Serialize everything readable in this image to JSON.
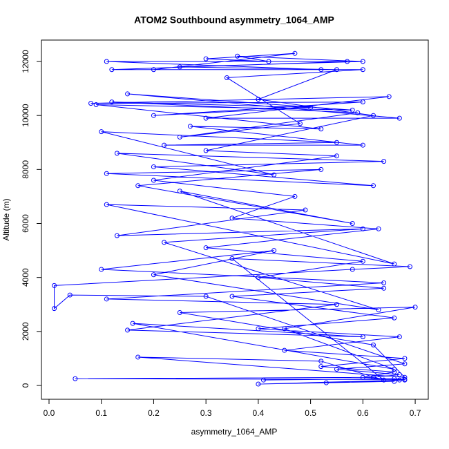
{
  "chart_data": {
    "type": "line",
    "markers": true,
    "title": "ATOM2 Southbound asymmetry_1064_AMP",
    "xlabel": "asymmetry_1064_AMP",
    "ylabel": "Altitude (m)",
    "color": "#0000ff",
    "x": [
      0.41,
      0.66,
      0.68,
      0.05,
      0.62,
      0.67,
      0.55,
      0.68,
      0.3,
      0.04,
      0.01,
      0.01,
      0.58,
      0.69,
      0.35,
      0.64,
      0.52,
      0.17,
      0.68,
      0.62,
      0.25,
      0.7,
      0.45,
      0.66,
      0.16,
      0.6,
      0.15,
      0.55,
      0.11,
      0.64,
      0.1,
      0.43,
      0.2,
      0.63,
      0.22,
      0.6,
      0.13,
      0.49,
      0.11,
      0.66,
      0.25,
      0.58,
      0.17,
      0.52,
      0.11,
      0.62,
      0.2,
      0.64,
      0.13,
      0.43,
      0.1,
      0.55,
      0.22,
      0.6,
      0.27,
      0.52,
      0.09,
      0.58,
      0.15,
      0.67,
      0.3,
      0.65,
      0.08,
      0.6,
      0.2,
      0.5,
      0.12,
      0.59,
      0.25,
      0.48,
      0.34,
      0.6,
      0.12,
      0.57,
      0.11,
      0.52,
      0.2,
      0.47,
      0.3,
      0.42,
      0.36,
      0.6,
      0.25,
      0.55,
      0.4,
      0.62,
      0.3,
      0.55,
      0.2,
      0.47,
      0.35,
      0.63,
      0.3,
      0.6,
      0.4,
      0.64,
      0.35,
      0.66,
      0.4,
      0.67,
      0.45,
      0.68,
      0.52,
      0.66,
      0.6,
      0.67,
      0.53,
      0.68,
      0.4,
      0.66
    ],
    "values": [
      200,
      250,
      220,
      250,
      300,
      400,
      600,
      800,
      3300,
      3350,
      2850,
      3700,
      4300,
      4400,
      4700,
      200,
      900,
      1050,
      300,
      1500,
      2700,
      2900,
      2100,
      600,
      2300,
      1800,
      2050,
      3000,
      3200,
      3800,
      4300,
      5000,
      4100,
      2800,
      5300,
      5800,
      5550,
      6500,
      6700,
      4500,
      7200,
      6000,
      7400,
      8000,
      7850,
      7400,
      8100,
      8300,
      8600,
      7800,
      9400,
      9000,
      8900,
      8900,
      9600,
      9500,
      10400,
      10200,
      10800,
      9900,
      9900,
      10700,
      10450,
      10500,
      10000,
      10300,
      10500,
      10100,
      9200,
      9700,
      11400,
      11700,
      11700,
      12000,
      12000,
      11700,
      11700,
      12300,
      12100,
      12000,
      12200,
      12000,
      11800,
      11700,
      10600,
      10000,
      8700,
      8500,
      7600,
      7000,
      6200,
      5800,
      5100,
      4600,
      4000,
      3600,
      3300,
      2500,
      2100,
      1800,
      1300,
      1000,
      700,
      500,
      300,
      200,
      100,
      200,
      50,
      150
    ],
    "xlim": [
      -0.0145,
      0.725
    ],
    "ylim": [
      -512,
      12794
    ],
    "xticks": [
      {
        "value": 0,
        "label": "0.0"
      },
      0.1,
      0.2,
      0.3,
      0.4,
      0.5,
      0.6,
      0.7
    ],
    "yticks": [
      0,
      2000,
      4000,
      6000,
      8000,
      10000,
      12000
    ]
  }
}
